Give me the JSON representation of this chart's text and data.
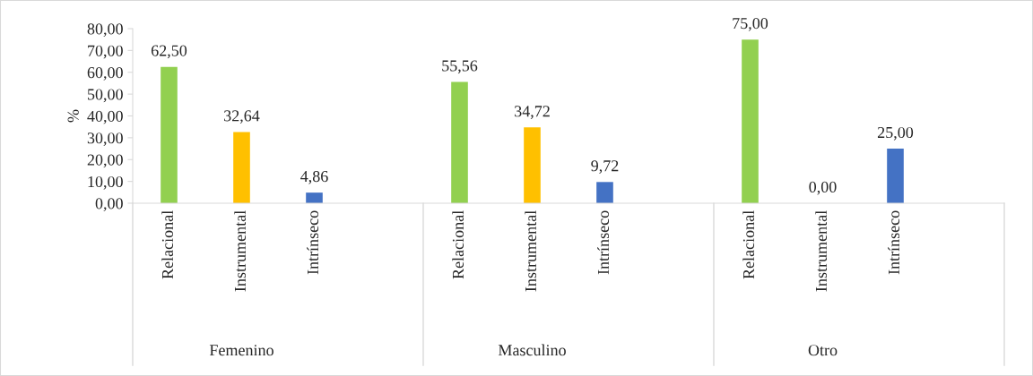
{
  "chart_data": {
    "type": "bar",
    "ylabel": "%",
    "categories": [
      "Relacional",
      "Instrumental",
      "Intrínseco",
      "Relacional",
      "Instrumental",
      "Intrínseco",
      "Relacional",
      "Instrumental",
      "Intrínseco"
    ],
    "values": [
      62.5,
      32.64,
      4.86,
      55.56,
      34.72,
      9.72,
      75.0,
      0.0,
      25.0
    ],
    "value_labels": [
      "62,50",
      "32,64",
      "4,86",
      "55,56",
      "34,72",
      "9,72",
      "75,00",
      "0,00",
      "25,00"
    ],
    "colors": [
      "#92d050",
      "#ffc000",
      "#4472c4",
      "#92d050",
      "#ffc000",
      "#4472c4",
      "#92d050",
      "#ffc000",
      "#4472c4"
    ],
    "ylim": [
      0,
      80
    ],
    "yticks": [
      {
        "value": 0,
        "label": "0,00"
      },
      {
        "value": 10,
        "label": "10,00"
      },
      {
        "value": 20,
        "label": "20,00"
      },
      {
        "value": 30,
        "label": "30,00"
      },
      {
        "value": 40,
        "label": "40,00"
      },
      {
        "value": 50,
        "label": "50,00"
      },
      {
        "value": 60,
        "label": "60,00"
      },
      {
        "value": 70,
        "label": "70,00"
      },
      {
        "value": 80,
        "label": "80,00"
      }
    ],
    "annotations": [
      "Femenino",
      "Masculino",
      "Otro"
    ]
  }
}
